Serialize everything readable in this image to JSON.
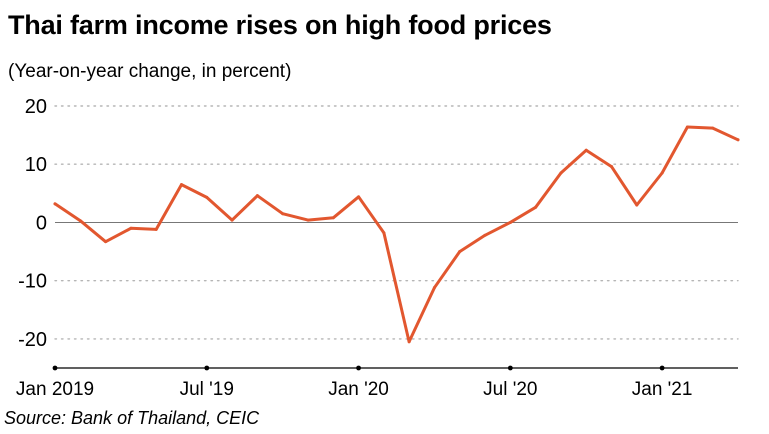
{
  "title": "Thai farm income rises on high food prices",
  "subtitle": "(Year-on-year change, in percent)",
  "source": "Source: Bank of Thailand, CEIC",
  "colors": {
    "line": "#e2572f",
    "grid": "#b5b5b5",
    "zero_line": "#777777",
    "axis": "#000000"
  },
  "chart_data": {
    "type": "line",
    "title": "Thai farm income rises on high food prices",
    "ylabel": "Year-on-year change, in percent",
    "xlabel": "",
    "ylim": [
      -25,
      20
    ],
    "yticks": [
      20,
      10,
      0,
      -10,
      -20
    ],
    "xticks": [
      {
        "index": 0,
        "label": "Jan 2019"
      },
      {
        "index": 6,
        "label": "Jul '19"
      },
      {
        "index": 12,
        "label": "Jan '20"
      },
      {
        "index": 18,
        "label": "Jul '20"
      },
      {
        "index": 24,
        "label": "Jan '21"
      }
    ],
    "x_month_count": 28,
    "series": [
      {
        "name": "Farm income",
        "x": [
          "Jan 2019",
          "Feb 2019",
          "Mar 2019",
          "Apr 2019",
          "May 2019",
          "Jun 2019",
          "Jul 2019",
          "Aug 2019",
          "Sep 2019",
          "Oct 2019",
          "Nov 2019",
          "Dec 2019",
          "Jan 2020",
          "Feb 2020",
          "Mar 2020",
          "Apr 2020",
          "May 2020",
          "Jun 2020",
          "Jul 2020",
          "Aug 2020",
          "Sep 2020",
          "Oct 2020",
          "Nov 2020",
          "Dec 2020",
          "Jan 2021",
          "Feb 2021",
          "Mar 2021",
          "Apr 2021"
        ],
        "values": [
          3.2,
          0.3,
          -3.3,
          -1.0,
          -1.2,
          6.5,
          4.3,
          0.4,
          4.6,
          1.5,
          0.4,
          0.8,
          4.4,
          -1.8,
          -20.5,
          -11.2,
          -5.0,
          -2.2,
          0.0,
          2.6,
          8.5,
          12.4,
          9.6,
          3.0,
          8.5,
          16.4,
          16.2,
          14.2
        ]
      }
    ]
  }
}
